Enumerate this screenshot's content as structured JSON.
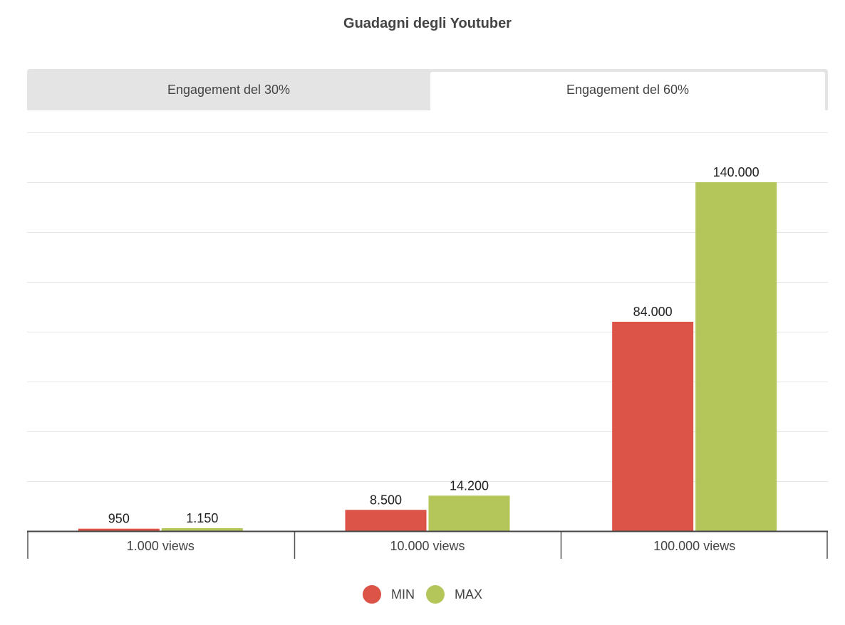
{
  "chart_data": {
    "type": "bar",
    "title": "Guadagni degli Youtuber",
    "tabs": [
      {
        "label": "Engagement del 30%",
        "active": false
      },
      {
        "label": "Engagement del 60%",
        "active": true
      }
    ],
    "categories": [
      "1.000 views",
      "10.000 views",
      "100.000 views"
    ],
    "series": [
      {
        "name": "MIN",
        "color": "#dc5347",
        "values": [
          950,
          8500,
          84000
        ],
        "labels": [
          "950",
          "8.500",
          "84.000"
        ]
      },
      {
        "name": "MAX",
        "color": "#b4c55a",
        "values": [
          1150,
          14200,
          140000
        ],
        "labels": [
          "1.150",
          "14.200",
          "140.000"
        ]
      }
    ],
    "ylim": [
      0,
      160000
    ],
    "grid": true,
    "legend_position": "bottom-center"
  }
}
